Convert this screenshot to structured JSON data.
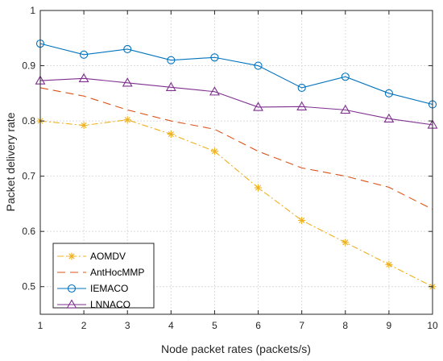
{
  "chart_data": {
    "type": "line",
    "xlabel": "Node packet rates (packets/s)",
    "ylabel": "Packet delivery rate",
    "x": [
      1,
      2,
      3,
      4,
      5,
      6,
      7,
      8,
      9,
      10
    ],
    "xlim": [
      1,
      10
    ],
    "ylim": [
      0.45,
      1
    ],
    "xticks": [
      "1",
      "2",
      "3",
      "4",
      "5",
      "6",
      "7",
      "8",
      "9",
      "10"
    ],
    "yticks": [
      "0.5",
      "0.6",
      "0.7",
      "0.8",
      "0.9",
      "1"
    ],
    "grid": true,
    "legend_position": "bottom-left",
    "series": [
      {
        "name": "AOMDV",
        "color": "#EDB120",
        "line_style": "dash-dot",
        "marker": "asterisk",
        "values": [
          0.8,
          0.792,
          0.802,
          0.776,
          0.745,
          0.679,
          0.62,
          0.58,
          0.54,
          0.5
        ]
      },
      {
        "name": "AntHocMMP",
        "color": "#D95319",
        "line_style": "dashed",
        "marker": "none",
        "values": [
          0.86,
          0.845,
          0.82,
          0.8,
          0.785,
          0.745,
          0.715,
          0.7,
          0.68,
          0.64
        ]
      },
      {
        "name": "IEMACO",
        "color": "#0072BD",
        "line_style": "solid",
        "marker": "circle",
        "values": [
          0.94,
          0.92,
          0.93,
          0.91,
          0.915,
          0.9,
          0.86,
          0.88,
          0.85,
          0.83
        ]
      },
      {
        "name": "LNNACO",
        "color": "#7E2F8E",
        "line_style": "solid",
        "marker": "triangle",
        "values": [
          0.873,
          0.877,
          0.869,
          0.861,
          0.853,
          0.825,
          0.826,
          0.82,
          0.804,
          0.793
        ]
      }
    ]
  }
}
